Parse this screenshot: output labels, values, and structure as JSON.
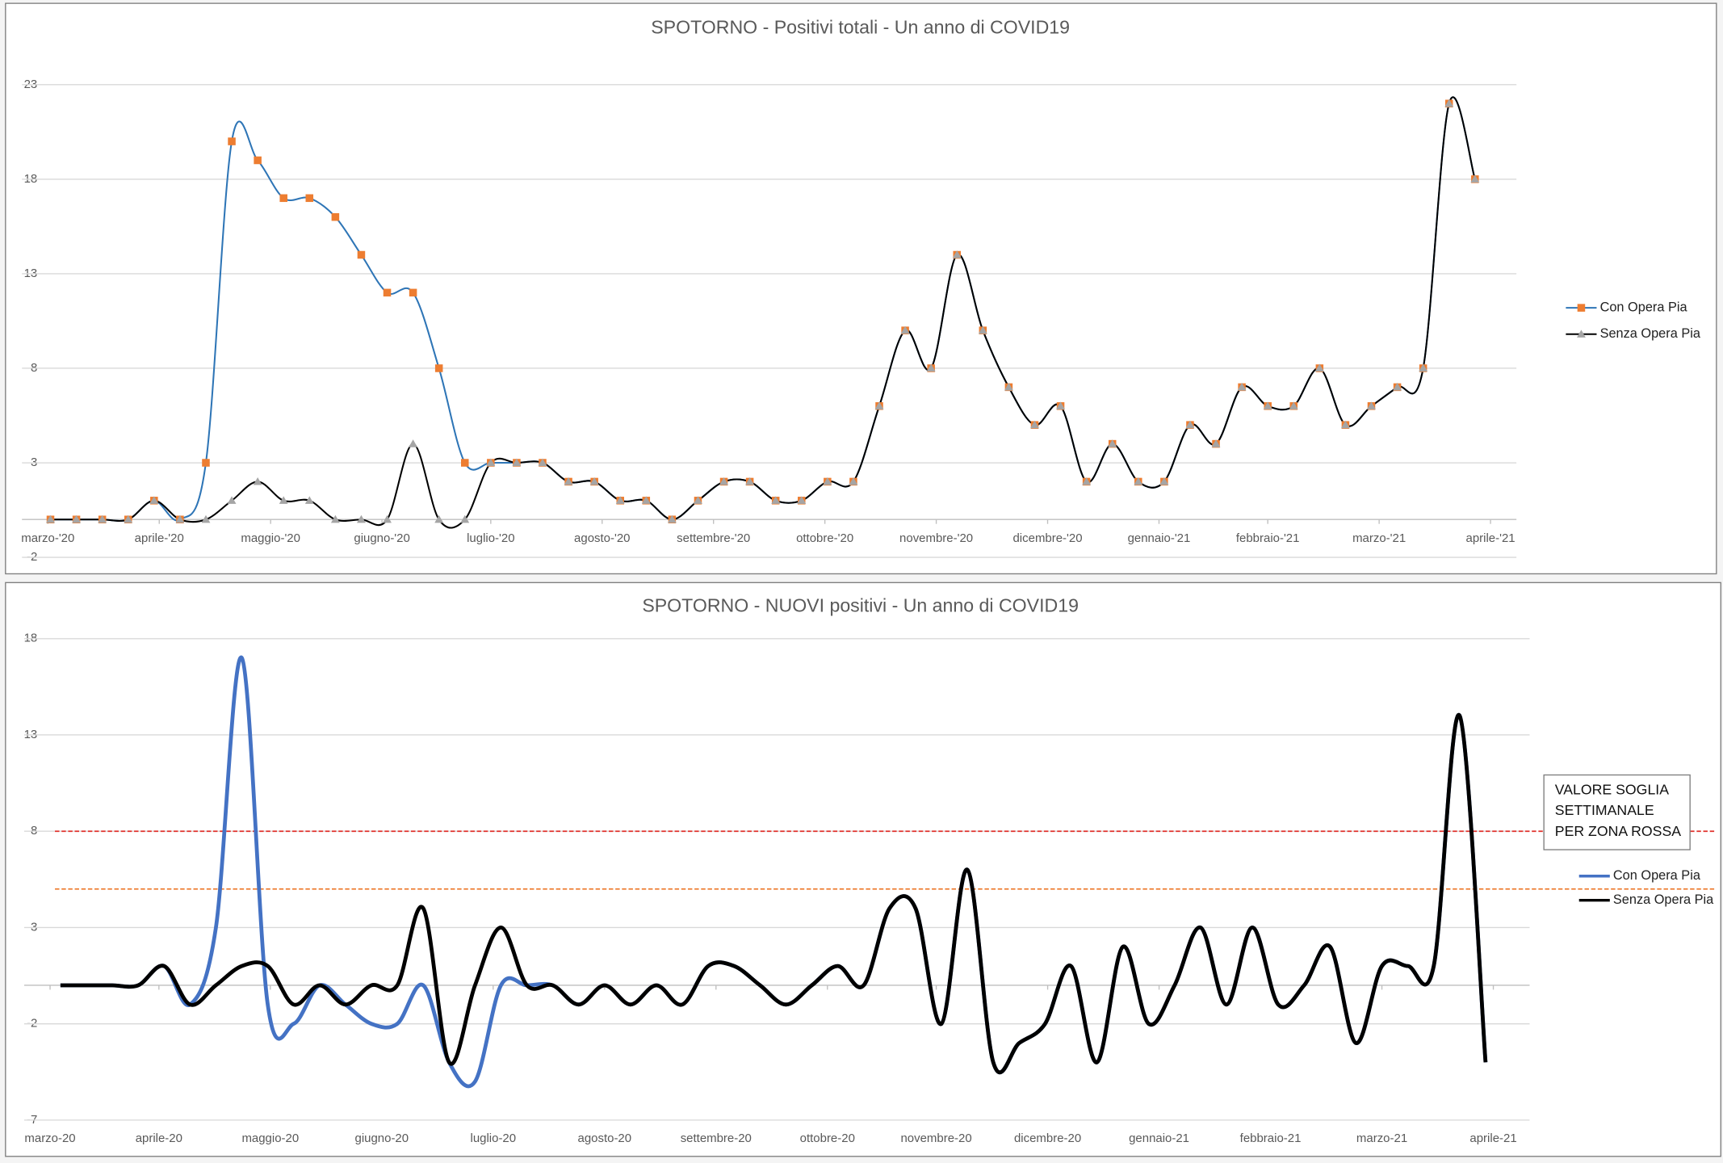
{
  "chart_data": [
    {
      "type": "line",
      "title": "SPOTORNO - Positivi totali - Un anno di COVID19",
      "series": [
        {
          "name": "Con Opera Pia",
          "color": "#2e75b6",
          "marker": "square",
          "marker_color": "#ed7d31",
          "values": [
            0,
            0,
            0,
            0,
            1,
            0,
            3,
            20,
            19,
            17,
            17,
            16,
            14,
            12,
            12,
            8,
            3,
            3,
            3,
            3,
            2,
            2,
            1,
            1,
            0,
            1,
            2,
            2,
            1,
            1,
            2,
            2,
            6,
            10,
            8,
            14,
            10,
            7,
            5,
            6,
            2,
            4,
            2,
            2,
            5,
            4,
            7,
            6,
            6,
            8,
            5,
            6,
            7,
            8,
            22,
            18
          ]
        },
        {
          "name": "Senza Opera Pia",
          "color": "#000000",
          "marker": "triangle",
          "marker_color": "#a5a5a5",
          "values": [
            0,
            0,
            0,
            0,
            1,
            0,
            0,
            1,
            2,
            1,
            1,
            0,
            0,
            0,
            4,
            0,
            0,
            3,
            3,
            3,
            2,
            2,
            1,
            1,
            0,
            1,
            2,
            2,
            1,
            1,
            2,
            2,
            6,
            10,
            8,
            14,
            10,
            7,
            5,
            6,
            2,
            4,
            2,
            2,
            5,
            4,
            7,
            6,
            6,
            8,
            5,
            6,
            7,
            8,
            22,
            18
          ]
        }
      ],
      "ylim": [
        -2,
        23
      ],
      "yticks": [
        -2,
        3,
        8,
        13,
        18,
        23
      ],
      "xlim": [
        -1.1,
        56.6
      ],
      "xticks": [
        {
          "value": -0.1,
          "label": "marzo-'20"
        },
        {
          "value": 4.2,
          "label": "aprile-'20"
        },
        {
          "value": 8.5,
          "label": "maggio-'20"
        },
        {
          "value": 12.8,
          "label": "giugno-'20"
        },
        {
          "value": 17.0,
          "label": "luglio-'20"
        },
        {
          "value": 21.3,
          "label": "agosto-'20"
        },
        {
          "value": 25.6,
          "label": "settembre-'20"
        },
        {
          "value": 29.9,
          "label": "ottobre-'20"
        },
        {
          "value": 34.2,
          "label": "novembre-'20"
        },
        {
          "value": 38.5,
          "label": "dicembre-'20"
        },
        {
          "value": 42.8,
          "label": "gennaio-'21"
        },
        {
          "value": 47.0,
          "label": "febbraio-'21"
        },
        {
          "value": 51.3,
          "label": "marzo-'21"
        },
        {
          "value": 55.6,
          "label": "aprile-'21"
        }
      ],
      "grid": true,
      "legend": "right",
      "line_width": 1.5
    },
    {
      "type": "line",
      "title": "SPOTORNO - NUOVI positivi - Un anno di COVID19",
      "series": [
        {
          "name": "Con Opera Pia",
          "color": "#4472c4",
          "values": [
            0,
            0,
            0,
            0,
            1,
            -1,
            3,
            17,
            -1,
            -2,
            0,
            -1,
            -2,
            -2,
            0,
            -4,
            -5,
            0,
            0,
            0,
            -1,
            0,
            -1,
            0,
            -1,
            1,
            1,
            0,
            -1,
            0,
            1,
            0,
            4,
            4,
            -2,
            6,
            -4,
            -3,
            -2,
            1,
            -4,
            2,
            -2,
            0,
            3,
            -1,
            3,
            -1,
            0,
            2,
            -3,
            1,
            1,
            1,
            14,
            -4
          ]
        },
        {
          "name": "Senza Opera Pia",
          "color": "#000000",
          "values": [
            0,
            0,
            0,
            0,
            1,
            -1,
            0,
            1,
            1,
            -1,
            0,
            -1,
            0,
            0,
            4,
            -4,
            0,
            3,
            0,
            0,
            -1,
            0,
            -1,
            0,
            -1,
            1,
            1,
            0,
            -1,
            0,
            1,
            0,
            4,
            4,
            -2,
            6,
            -4,
            -3,
            -2,
            1,
            -4,
            2,
            -2,
            0,
            3,
            -1,
            3,
            -1,
            0,
            2,
            -3,
            1,
            1,
            1,
            14,
            -4
          ]
        }
      ],
      "ylim": [
        -7,
        18
      ],
      "yticks": [
        -7,
        -2,
        3,
        8,
        13,
        18
      ],
      "xlim": [
        -1.4,
        56.7
      ],
      "xticks": [
        {
          "value": -0.4,
          "label": "marzo-20"
        },
        {
          "value": 3.8,
          "label": "aprile-20"
        },
        {
          "value": 8.1,
          "label": "maggio-20"
        },
        {
          "value": 12.4,
          "label": "giugno-20"
        },
        {
          "value": 16.7,
          "label": "luglio-20"
        },
        {
          "value": 21.0,
          "label": "agosto-20"
        },
        {
          "value": 25.3,
          "label": "settembre-20"
        },
        {
          "value": 29.6,
          "label": "ottobre-20"
        },
        {
          "value": 33.8,
          "label": "novembre-20"
        },
        {
          "value": 38.1,
          "label": "dicembre-20"
        },
        {
          "value": 42.4,
          "label": "gennaio-21"
        },
        {
          "value": 46.7,
          "label": "febbraio-21"
        },
        {
          "value": 51.0,
          "label": "marzo-21"
        },
        {
          "value": 55.3,
          "label": "aprile-21"
        }
      ],
      "grid": true,
      "legend": "right",
      "line_width": 3.5,
      "reference_lines": [
        {
          "value": 8,
          "color": "#e0302a"
        },
        {
          "value": 5,
          "color": "#ed7d31"
        }
      ],
      "annotation": [
        "VALORE SOGLIA",
        "SETTIMANALE",
        "PER ZONA ROSSA"
      ]
    }
  ]
}
